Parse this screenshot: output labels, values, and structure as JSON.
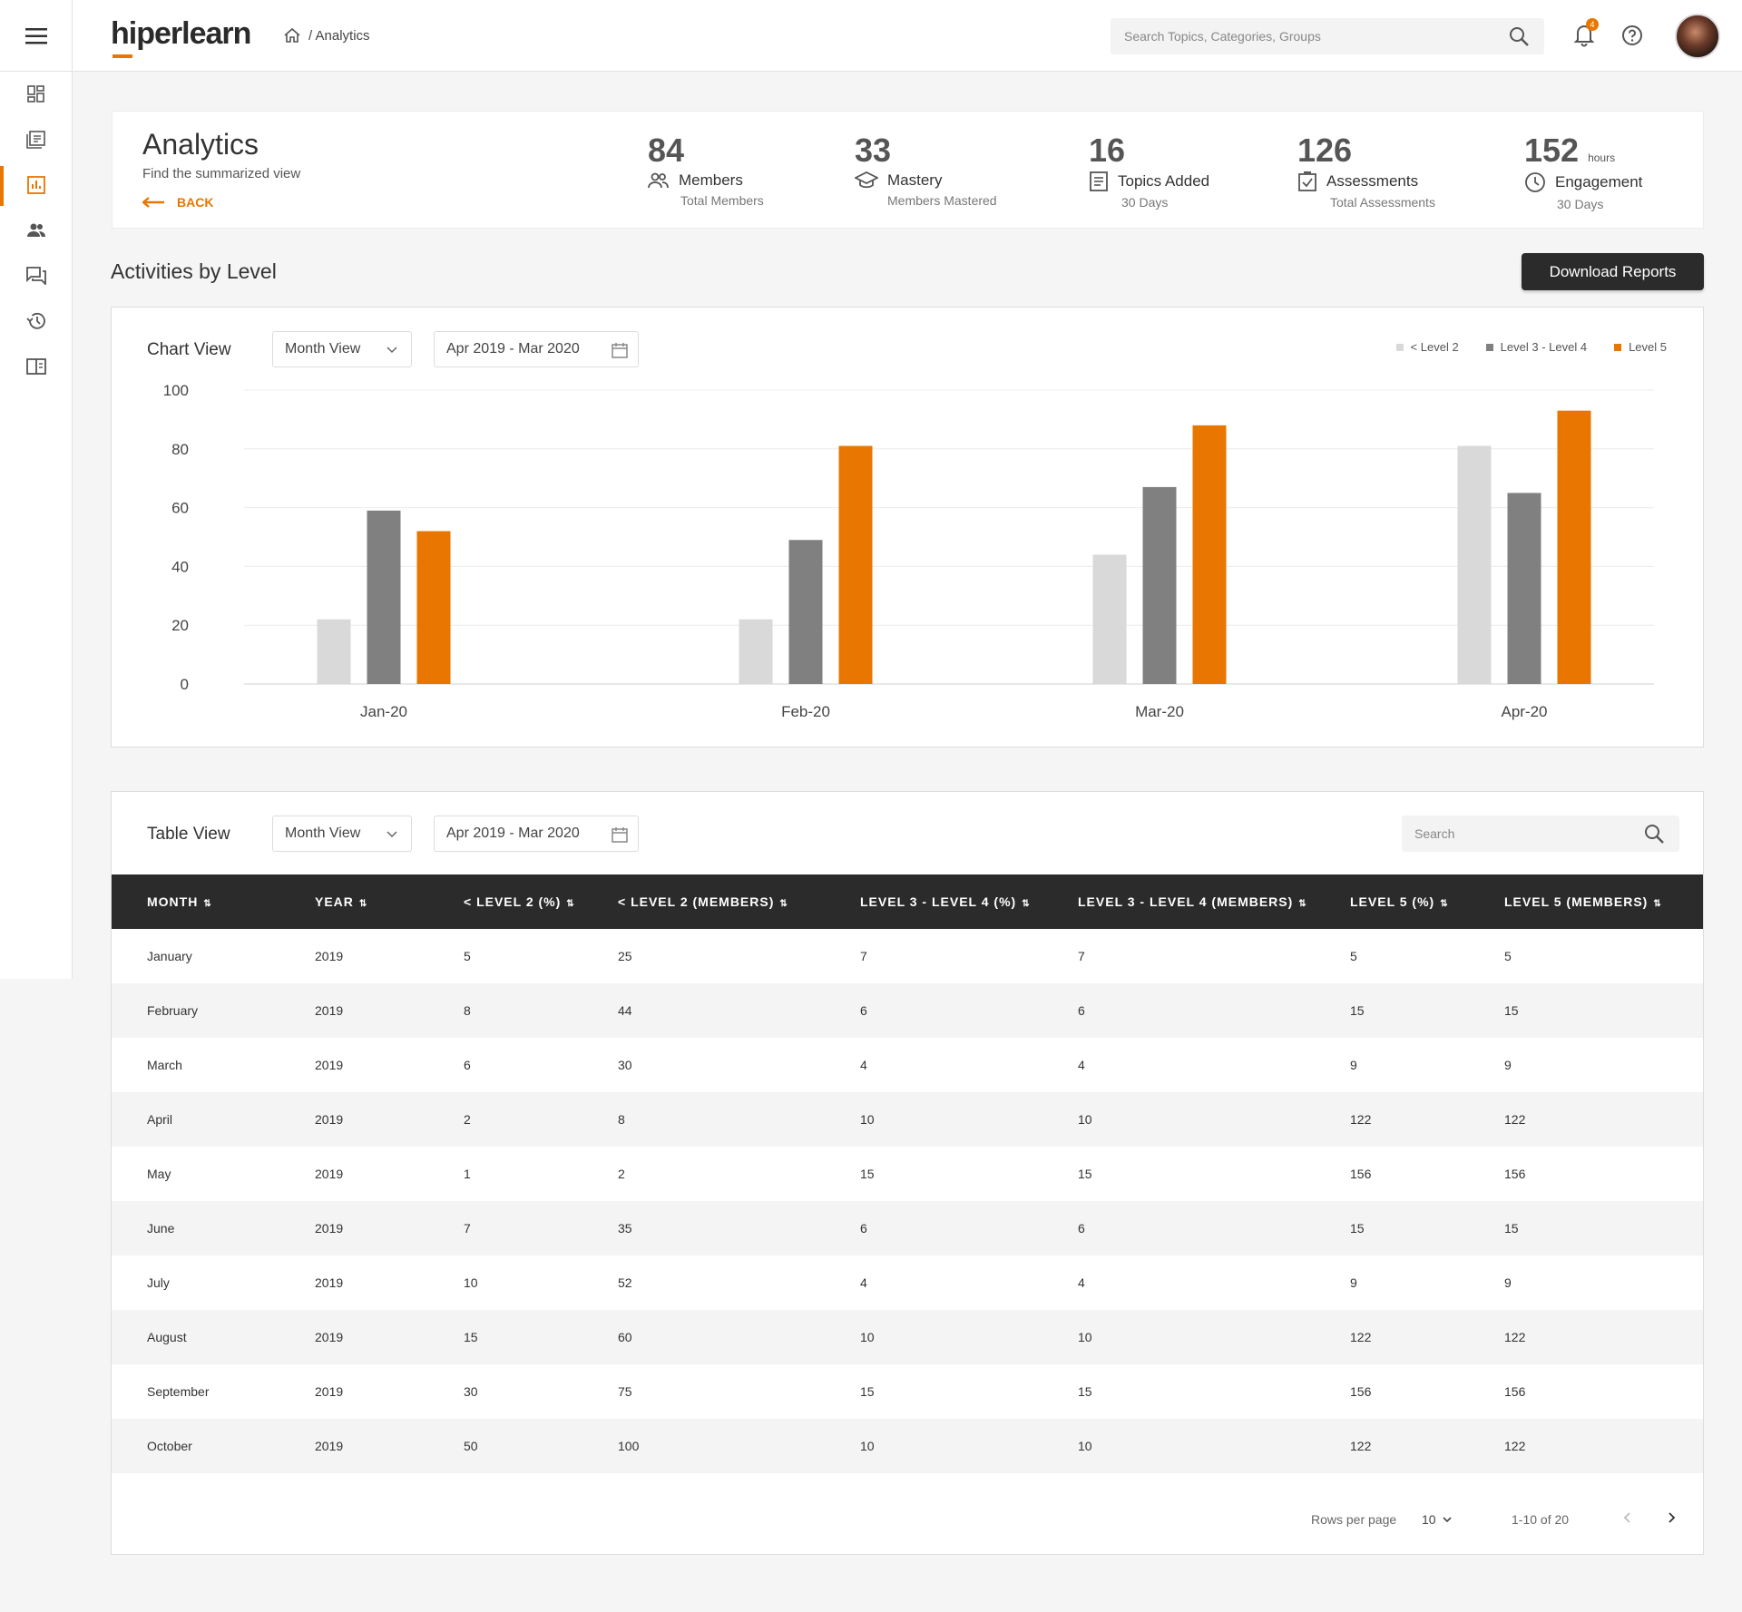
{
  "app": {
    "logo_text": "hiperlearn",
    "breadcrumb": "/ Analytics"
  },
  "topbar": {
    "search_placeholder": "Search Topics, Categories, Groups",
    "notification_count": "4"
  },
  "sidebar": {
    "items": [
      "dashboard-icon",
      "courses-icon",
      "analytics-icon",
      "members-icon",
      "discussions-icon",
      "history-icon",
      "library-icon"
    ],
    "active": "analytics-icon"
  },
  "header": {
    "title": "Analytics",
    "subtitle": "Find the summarized view",
    "back_label": "BACK"
  },
  "stats": [
    {
      "value": "84",
      "unit": "",
      "label": "Members",
      "sub": "Total Members",
      "icon": "members-icon"
    },
    {
      "value": "33",
      "unit": "",
      "label": "Mastery",
      "sub": "Members Mastered",
      "icon": "graduation-cap-icon"
    },
    {
      "value": "16",
      "unit": "",
      "label": "Topics Added",
      "sub": "30 Days",
      "icon": "document-icon"
    },
    {
      "value": "126",
      "unit": "",
      "label": "Assessments",
      "sub": "Total Assessments",
      "icon": "checklist-icon"
    },
    {
      "value": "152",
      "unit": "hours",
      "label": "Engagement",
      "sub": "30 Days",
      "icon": "clock-icon"
    }
  ],
  "section": {
    "title": "Activities by Level",
    "download_label": "Download Reports"
  },
  "chart_card": {
    "title": "Chart View",
    "view_select": "Month View",
    "date_range": "Apr 2019 - Mar 2020"
  },
  "colors": {
    "level2": "#d9d9d9",
    "level34": "#808080",
    "level5": "#e87600",
    "accent": "#e87600"
  },
  "chart_data": {
    "type": "bar",
    "categories": [
      "Jan-20",
      "Feb-20",
      "Mar-20",
      "Apr-20"
    ],
    "series": [
      {
        "name": "< Level 2",
        "values": [
          22,
          22,
          44,
          81
        ]
      },
      {
        "name": "Level 3 - Level 4",
        "values": [
          59,
          49,
          67,
          65
        ]
      },
      {
        "name": "Level 5",
        "values": [
          52,
          81,
          88,
          93
        ]
      }
    ],
    "yticks": [
      "100",
      "80",
      "60",
      "40",
      "20",
      "0"
    ],
    "ylim": [
      0,
      100
    ],
    "grid": true,
    "legend_position": "top-right"
  },
  "table_card": {
    "title": "Table View",
    "view_select": "Month View",
    "date_range": "Apr 2019 - Mar 2020",
    "search_placeholder": "Search"
  },
  "table": {
    "columns": [
      "MONTH",
      "YEAR",
      "< LEVEL 2 (%)",
      "< LEVEL 2 (MEMBERS)",
      "LEVEL 3 - LEVEL 4 (%)",
      "LEVEL 3 - LEVEL 4 (MEMBERS)",
      "LEVEL 5 (%)",
      "LEVEL 5 (MEMBERS)"
    ],
    "rows": [
      [
        "January",
        "2019",
        "5",
        "25",
        "7",
        "7",
        "5",
        "5"
      ],
      [
        "February",
        "2019",
        "8",
        "44",
        "6",
        "6",
        "15",
        "15"
      ],
      [
        "March",
        "2019",
        "6",
        "30",
        "4",
        "4",
        "9",
        "9"
      ],
      [
        "April",
        "2019",
        "2",
        "8",
        "10",
        "10",
        "122",
        "122"
      ],
      [
        "May",
        "2019",
        "1",
        "2",
        "15",
        "15",
        "156",
        "156"
      ],
      [
        "June",
        "2019",
        "7",
        "35",
        "6",
        "6",
        "15",
        "15"
      ],
      [
        "July",
        "2019",
        "10",
        "52",
        "4",
        "4",
        "9",
        "9"
      ],
      [
        "August",
        "2019",
        "15",
        "60",
        "10",
        "10",
        "122",
        "122"
      ],
      [
        "September",
        "2019",
        "30",
        "75",
        "15",
        "15",
        "156",
        "156"
      ],
      [
        "October",
        "2019",
        "50",
        "100",
        "10",
        "10",
        "122",
        "122"
      ]
    ]
  },
  "pagination": {
    "rows_per_page_label": "Rows per page",
    "rows_per_page": "10",
    "range": "1-10 of 20"
  }
}
